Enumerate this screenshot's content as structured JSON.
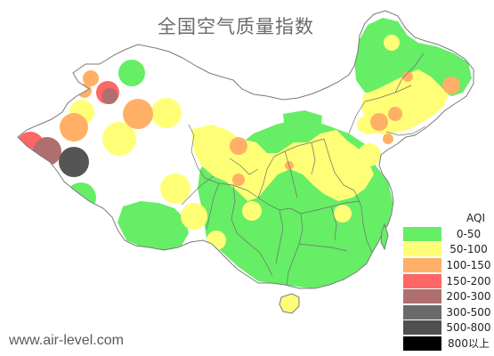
{
  "title": "全国空气质量指数",
  "watermark": "www.air-level.com",
  "colors": {
    "good": "#66ee66",
    "moderate": "#ffff77",
    "sensitive": "#ffb066",
    "unhealthy": "#ff6666",
    "very_unhealthy": "#b06f6f",
    "hazardous": "#6a6a6a",
    "severe": "#505050",
    "extreme": "#000000",
    "background": "#ffffff",
    "border": "#777777"
  },
  "legend": {
    "title": "AQI",
    "items": [
      {
        "label": "0-50",
        "color": "#66ee66"
      },
      {
        "label": "50-100",
        "color": "#ffff77"
      },
      {
        "label": "100-150",
        "color": "#ffb066"
      },
      {
        "label": "150-200",
        "color": "#ff6666"
      },
      {
        "label": "200-300",
        "color": "#b06f6f"
      },
      {
        "label": "300-500",
        "color": "#6a6a6a"
      },
      {
        "label": "500-800",
        "color": "#505050"
      },
      {
        "label": "800以上",
        "color": "#000000"
      }
    ]
  }
}
